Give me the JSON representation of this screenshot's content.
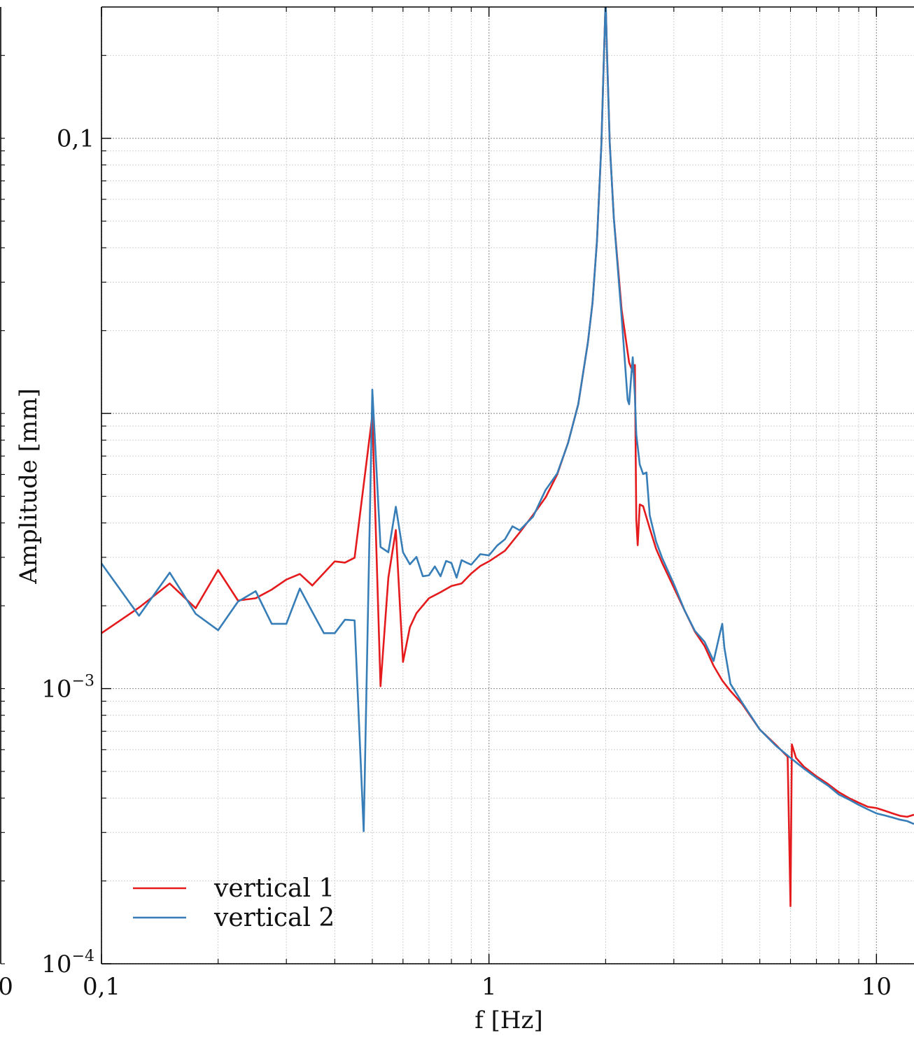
{
  "chart_data": {
    "type": "line",
    "xlabel": "f [Hz]",
    "ylabel": "Amplitude [mm]",
    "x_scale": "log",
    "y_scale": "log",
    "xlim": [
      0.1,
      12.5
    ],
    "ylim": [
      0.0001,
      0.3
    ],
    "grid": true,
    "grid_style": "dotted",
    "legend_position": "lower-left",
    "x_ticks": [
      {
        "value": 0.1,
        "label": "0,1"
      },
      {
        "value": 1,
        "label": "1"
      },
      {
        "value": 10,
        "label": "10"
      }
    ],
    "y_ticks": [
      {
        "value": 0.0001,
        "base": "10",
        "exp": "−4"
      },
      {
        "value": 0.001,
        "base": "10",
        "exp": "−3"
      },
      {
        "value": 0.1,
        "base": "0,1",
        "exp": ""
      }
    ],
    "left_edge_label": "0",
    "series": [
      {
        "name": "vertical 1",
        "color": "#e41a1c",
        "points": [
          [
            0.1,
            0.00159
          ],
          [
            0.125,
            0.00197
          ],
          [
            0.15,
            0.00241
          ],
          [
            0.175,
            0.00196
          ],
          [
            0.2,
            0.0027
          ],
          [
            0.225,
            0.00209
          ],
          [
            0.25,
            0.00213
          ],
          [
            0.275,
            0.00229
          ],
          [
            0.3,
            0.00249
          ],
          [
            0.325,
            0.00261
          ],
          [
            0.35,
            0.00237
          ],
          [
            0.4,
            0.0029
          ],
          [
            0.425,
            0.00287
          ],
          [
            0.45,
            0.00299
          ],
          [
            0.5,
            0.00984
          ],
          [
            0.525,
            0.00102
          ],
          [
            0.55,
            0.00253
          ],
          [
            0.575,
            0.00377
          ],
          [
            0.6,
            0.00125
          ],
          [
            0.625,
            0.00167
          ],
          [
            0.65,
            0.00188
          ],
          [
            0.7,
            0.00213
          ],
          [
            0.75,
            0.00224
          ],
          [
            0.8,
            0.00236
          ],
          [
            0.85,
            0.00241
          ],
          [
            0.9,
            0.00262
          ],
          [
            0.95,
            0.00279
          ],
          [
            1.0,
            0.0029
          ],
          [
            1.1,
            0.00317
          ],
          [
            1.2,
            0.00369
          ],
          [
            1.3,
            0.00428
          ],
          [
            1.4,
            0.00495
          ],
          [
            1.5,
            0.006
          ],
          [
            1.6,
            0.00782
          ],
          [
            1.7,
            0.0108
          ],
          [
            1.8,
            0.0181
          ],
          [
            1.85,
            0.0252
          ],
          [
            1.9,
            0.0424
          ],
          [
            1.95,
            0.0943
          ],
          [
            1.98,
            0.198
          ],
          [
            2.0,
            0.32
          ],
          [
            2.02,
            0.188
          ],
          [
            2.05,
            0.0957
          ],
          [
            2.1,
            0.0513
          ],
          [
            2.2,
            0.0238
          ],
          [
            2.3,
            0.0153
          ],
          [
            2.35,
            0.0142
          ],
          [
            2.38,
            0.015
          ],
          [
            2.4,
            0.00412
          ],
          [
            2.42,
            0.00332
          ],
          [
            2.45,
            0.00467
          ],
          [
            2.5,
            0.0046
          ],
          [
            2.6,
            0.00382
          ],
          [
            2.7,
            0.00322
          ],
          [
            2.8,
            0.00286
          ],
          [
            3.0,
            0.00233
          ],
          [
            3.2,
            0.00192
          ],
          [
            3.4,
            0.00161
          ],
          [
            3.6,
            0.00143
          ],
          [
            3.8,
            0.00121
          ],
          [
            4.0,
            0.00107
          ],
          [
            4.2,
            0.00098
          ],
          [
            4.5,
            0.00088
          ],
          [
            5.0,
            0.00071
          ],
          [
            5.5,
            0.000625
          ],
          [
            5.9,
            0.000565
          ],
          [
            6.0,
            0.000162
          ],
          [
            6.05,
            0.000627
          ],
          [
            6.2,
            0.00056
          ],
          [
            6.5,
            0.00052
          ],
          [
            7.0,
            0.00048
          ],
          [
            7.5,
            0.00045
          ],
          [
            8.0,
            0.00042
          ],
          [
            8.5,
            0.0004
          ],
          [
            9.0,
            0.000385
          ],
          [
            9.5,
            0.000372
          ],
          [
            10.0,
            0.000368
          ],
          [
            10.5,
            0.00036
          ],
          [
            11.0,
            0.000352
          ],
          [
            11.5,
            0.000345
          ],
          [
            12.0,
            0.000342
          ],
          [
            12.5,
            0.000348
          ]
        ]
      },
      {
        "name": "vertical 2",
        "color": "#377eb8",
        "points": [
          [
            0.1,
            0.00285
          ],
          [
            0.125,
            0.00184
          ],
          [
            0.15,
            0.00264
          ],
          [
            0.175,
            0.00187
          ],
          [
            0.2,
            0.00163
          ],
          [
            0.225,
            0.00207
          ],
          [
            0.25,
            0.00226
          ],
          [
            0.275,
            0.00172
          ],
          [
            0.3,
            0.00172
          ],
          [
            0.325,
            0.00231
          ],
          [
            0.35,
            0.0019
          ],
          [
            0.375,
            0.00159
          ],
          [
            0.4,
            0.00159
          ],
          [
            0.425,
            0.00178
          ],
          [
            0.45,
            0.00177
          ],
          [
            0.475,
            0.000303
          ],
          [
            0.5,
            0.0122
          ],
          [
            0.525,
            0.00327
          ],
          [
            0.55,
            0.00313
          ],
          [
            0.575,
            0.00458
          ],
          [
            0.6,
            0.00313
          ],
          [
            0.625,
            0.00283
          ],
          [
            0.65,
            0.00301
          ],
          [
            0.675,
            0.00256
          ],
          [
            0.7,
            0.00258
          ],
          [
            0.725,
            0.00278
          ],
          [
            0.75,
            0.00256
          ],
          [
            0.775,
            0.00291
          ],
          [
            0.8,
            0.00286
          ],
          [
            0.825,
            0.00253
          ],
          [
            0.85,
            0.00293
          ],
          [
            0.875,
            0.00287
          ],
          [
            0.9,
            0.00282
          ],
          [
            0.95,
            0.00308
          ],
          [
            1.0,
            0.00305
          ],
          [
            1.05,
            0.00331
          ],
          [
            1.1,
            0.00349
          ],
          [
            1.15,
            0.00389
          ],
          [
            1.2,
            0.00376
          ],
          [
            1.3,
            0.00422
          ],
          [
            1.4,
            0.00527
          ],
          [
            1.5,
            0.00605
          ],
          [
            1.6,
            0.0078
          ],
          [
            1.7,
            0.0108
          ],
          [
            1.8,
            0.0181
          ],
          [
            1.85,
            0.0252
          ],
          [
            1.9,
            0.0424
          ],
          [
            1.95,
            0.0943
          ],
          [
            1.98,
            0.198
          ],
          [
            2.0,
            0.32
          ],
          [
            2.02,
            0.188
          ],
          [
            2.05,
            0.0957
          ],
          [
            2.1,
            0.0513
          ],
          [
            2.2,
            0.0224
          ],
          [
            2.28,
            0.0112
          ],
          [
            2.3,
            0.0108
          ],
          [
            2.33,
            0.0138
          ],
          [
            2.35,
            0.016
          ],
          [
            2.36,
            0.0144
          ],
          [
            2.38,
            0.0116
          ],
          [
            2.4,
            0.0084
          ],
          [
            2.45,
            0.00652
          ],
          [
            2.5,
            0.00602
          ],
          [
            2.55,
            0.0061
          ],
          [
            2.6,
            0.00426
          ],
          [
            2.7,
            0.00342
          ],
          [
            2.8,
            0.00298
          ],
          [
            3.0,
            0.0024
          ],
          [
            3.2,
            0.00192
          ],
          [
            3.4,
            0.00162
          ],
          [
            3.6,
            0.00148
          ],
          [
            3.8,
            0.00126
          ],
          [
            3.95,
            0.0016
          ],
          [
            4.0,
            0.00172
          ],
          [
            4.05,
            0.00141
          ],
          [
            4.2,
            0.00104
          ],
          [
            4.5,
            0.00089
          ],
          [
            5.0,
            0.00071
          ],
          [
            5.5,
            0.00062
          ],
          [
            6.0,
            0.00056
          ],
          [
            6.5,
            0.000512
          ],
          [
            7.0,
            0.000474
          ],
          [
            7.5,
            0.000444
          ],
          [
            8.0,
            0.000412
          ],
          [
            8.5,
            0.000395
          ],
          [
            9.0,
            0.000378
          ],
          [
            9.5,
            0.000364
          ],
          [
            10.0,
            0.000352
          ],
          [
            10.5,
            0.000346
          ],
          [
            11.0,
            0.00034
          ],
          [
            11.5,
            0.000334
          ],
          [
            12.0,
            0.00033
          ],
          [
            12.5,
            0.000322
          ]
        ]
      }
    ]
  }
}
